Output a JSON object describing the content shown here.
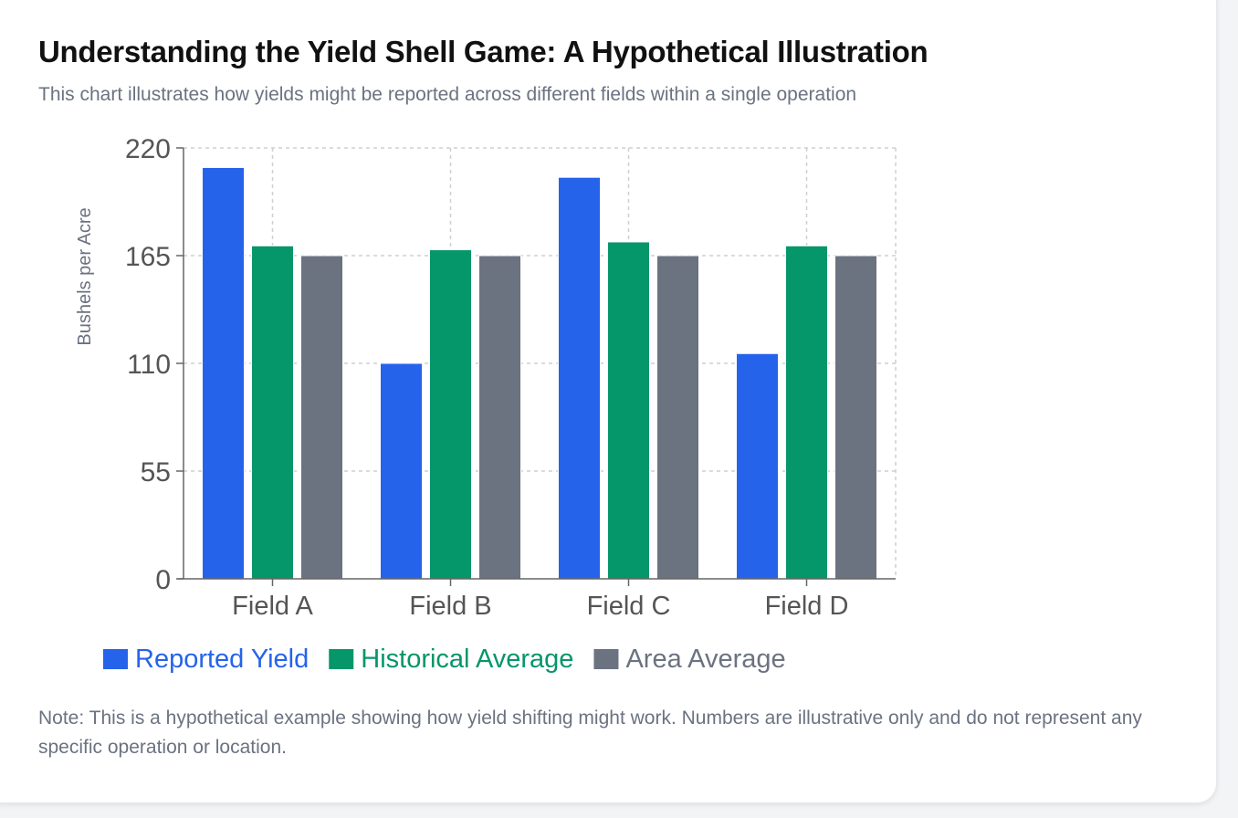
{
  "card": {
    "title": "Understanding the Yield Shell Game: A Hypothetical Illustration",
    "subtitle": "This chart illustrates how yields might be reported across different fields within a single operation",
    "note": "Note: This is a hypothetical example showing how yield shifting might work. Numbers are illustrative only and do not represent any specific operation or location."
  },
  "chart_data": {
    "type": "bar",
    "title": "",
    "xlabel": "",
    "ylabel": "Bushels per Acre",
    "categories": [
      "Field A",
      "Field B",
      "Field C",
      "Field D"
    ],
    "series": [
      {
        "name": "Reported Yield",
        "color": "#2563eb",
        "values": [
          210,
          110,
          205,
          115
        ]
      },
      {
        "name": "Historical Average",
        "color": "#059669",
        "values": [
          170,
          168,
          172,
          170
        ]
      },
      {
        "name": "Area Average",
        "color": "#6b7280",
        "values": [
          165,
          165,
          165,
          165
        ]
      }
    ],
    "ylim": [
      0,
      220
    ],
    "yticks": [
      "0",
      "55",
      "110",
      "165",
      "220"
    ],
    "grid": true,
    "legend_position": "bottom-left"
  }
}
